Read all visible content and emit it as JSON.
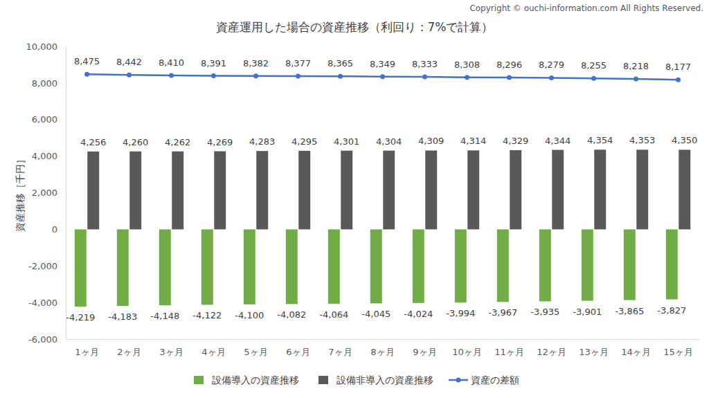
{
  "chart_data": {
    "type": "bar",
    "title": "資産運用した場合の資産推移（利回り：7%で計算）",
    "annotations": [
      "Copyright © ouchi-information.com All Rights Reserved."
    ],
    "y_label": "資産推移［千円］",
    "categories": [
      "1ヶ月",
      "2ヶ月",
      "3ヶ月",
      "4ヶ月",
      "5ヶ月",
      "6ヶ月",
      "7ヶ月",
      "8ヶ月",
      "9ヶ月",
      "10ヶ月",
      "11ヶ月",
      "12ヶ月",
      "13ヶ月",
      "14ヶ月",
      "15ヶ月"
    ],
    "series": [
      {
        "name": "設備導入の資産推移",
        "type": "bar",
        "color": "#70ad47",
        "values": [
          -4219,
          -4183,
          -4148,
          -4122,
          -4100,
          -4082,
          -4064,
          -4045,
          -4024,
          -3994,
          -3967,
          -3935,
          -3901,
          -3865,
          -3827
        ],
        "value_labels": [
          "-4,219",
          "-4,183",
          "-4,148",
          "-4,122",
          "-4,100",
          "-4,082",
          "-4,064",
          "-4,045",
          "-4,024",
          "-3,994",
          "-3,967",
          "-3,935",
          "-3,901",
          "-3,865",
          "-3,827"
        ]
      },
      {
        "name": "設備非導入の資産推移",
        "type": "bar",
        "color": "#595959",
        "values": [
          4256,
          4260,
          4262,
          4269,
          4283,
          4295,
          4301,
          4304,
          4309,
          4314,
          4329,
          4344,
          4354,
          4353,
          4350
        ],
        "value_labels": [
          "4,256",
          "4,260",
          "4,262",
          "4,269",
          "4,283",
          "4,295",
          "4,301",
          "4,304",
          "4,309",
          "4,314",
          "4,329",
          "4,344",
          "4,354",
          "4,353",
          "4,350"
        ]
      },
      {
        "name": "資産の差額",
        "type": "line",
        "color": "#4472c4",
        "marker": "circle",
        "values": [
          8475,
          8442,
          8410,
          8391,
          8382,
          8377,
          8365,
          8349,
          8333,
          8308,
          8296,
          8279,
          8255,
          8218,
          8177
        ],
        "value_labels": [
          "8,475",
          "8,442",
          "8,410",
          "8,391",
          "8,382",
          "8,377",
          "8,365",
          "8,349",
          "8,333",
          "8,308",
          "8,296",
          "8,279",
          "8,255",
          "8,218",
          "8,177"
        ]
      }
    ],
    "ylim": [
      -6000,
      10000
    ],
    "yticks": [
      {
        "value": -6000,
        "label": "-6,000"
      },
      {
        "value": -4000,
        "label": "-4,000"
      },
      {
        "value": -2000,
        "label": "-2,000"
      },
      0,
      {
        "value": 2000,
        "label": "2,000"
      },
      {
        "value": 4000,
        "label": "4,000"
      },
      {
        "value": 6000,
        "label": "6,000"
      },
      {
        "value": 8000,
        "label": "8,000"
      },
      {
        "value": 10000,
        "label": "10,000"
      }
    ],
    "grid": false,
    "data_labels": true,
    "legend": "bottom"
  }
}
